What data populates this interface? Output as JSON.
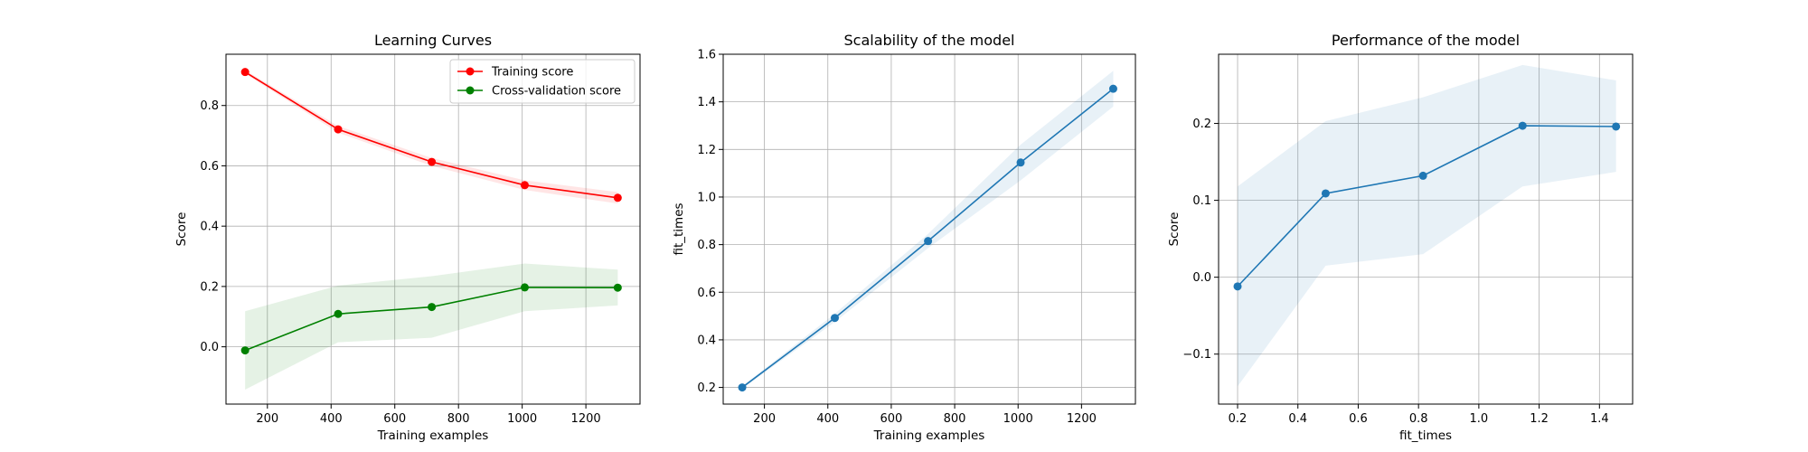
{
  "chart_data": [
    {
      "type": "line",
      "title": "Learning Curves",
      "xlabel": "Training examples",
      "ylabel": "Score",
      "xlim": [
        70,
        1370
      ],
      "ylim": [
        -0.19,
        0.97
      ],
      "xticks": [
        200,
        400,
        600,
        800,
        1000,
        1200
      ],
      "yticks": [
        0.0,
        0.2,
        0.4,
        0.6,
        0.8
      ],
      "ytick_labels": [
        "0.0",
        "0.2",
        "0.4",
        "0.6",
        "0.8"
      ],
      "grid": true,
      "legend": "top-right",
      "x": [
        130,
        422,
        716,
        1008,
        1300
      ],
      "series": [
        {
          "name": "Training score",
          "color": "#ff0000",
          "values": [
            0.911,
            0.721,
            0.613,
            0.536,
            0.494
          ],
          "lower": [
            0.905,
            0.71,
            0.6,
            0.52,
            0.475
          ],
          "upper": [
            0.917,
            0.732,
            0.626,
            0.552,
            0.513
          ]
        },
        {
          "name": "Cross-validation score",
          "color": "#008000",
          "values": [
            -0.012,
            0.109,
            0.132,
            0.197,
            0.196
          ],
          "lower": [
            -0.142,
            0.015,
            0.03,
            0.118,
            0.137
          ],
          "upper": [
            0.118,
            0.203,
            0.234,
            0.276,
            0.256
          ]
        }
      ]
    },
    {
      "type": "line",
      "title": "Scalability of the model",
      "xlabel": "Training examples",
      "ylabel": "fit_times",
      "xlim": [
        70,
        1370
      ],
      "ylim": [
        0.13,
        1.6
      ],
      "xticks": [
        200,
        400,
        600,
        800,
        1000,
        1200
      ],
      "yticks": [
        0.2,
        0.4,
        0.6,
        0.8,
        1.0,
        1.2,
        1.4,
        1.6
      ],
      "ytick_labels": [
        "0.2",
        "0.4",
        "0.6",
        "0.8",
        "1.0",
        "1.2",
        "1.4",
        "1.6"
      ],
      "grid": true,
      "x": [
        130,
        422,
        716,
        1008,
        1300
      ],
      "series": [
        {
          "color": "#1f77b4",
          "values": [
            0.2,
            0.492,
            0.815,
            1.145,
            1.455
          ],
          "lower": [
            0.195,
            0.475,
            0.785,
            1.07,
            1.38
          ],
          "upper": [
            0.205,
            0.51,
            0.845,
            1.22,
            1.53
          ]
        }
      ]
    },
    {
      "type": "line",
      "title": "Performance of the model",
      "xlabel": "fit_times",
      "ylabel": "Score",
      "xlim": [
        0.137,
        1.51
      ],
      "ylim": [
        -0.165,
        0.29
      ],
      "xticks": [
        0.2,
        0.4,
        0.6,
        0.8,
        1.0,
        1.2,
        1.4
      ],
      "xtick_labels": [
        "0.2",
        "0.4",
        "0.6",
        "0.8",
        "1.0",
        "1.2",
        "1.4"
      ],
      "yticks": [
        -0.1,
        0.0,
        0.1,
        0.2
      ],
      "ytick_labels": [
        "−0.1",
        "0.0",
        "0.1",
        "0.2"
      ],
      "grid": true,
      "x": [
        0.2,
        0.492,
        0.815,
        1.145,
        1.455
      ],
      "series": [
        {
          "color": "#1f77b4",
          "values": [
            -0.012,
            0.109,
            0.132,
            0.197,
            0.196
          ],
          "lower": [
            -0.142,
            0.015,
            0.03,
            0.118,
            0.137
          ],
          "upper": [
            0.118,
            0.203,
            0.234,
            0.276,
            0.256
          ]
        }
      ]
    }
  ]
}
